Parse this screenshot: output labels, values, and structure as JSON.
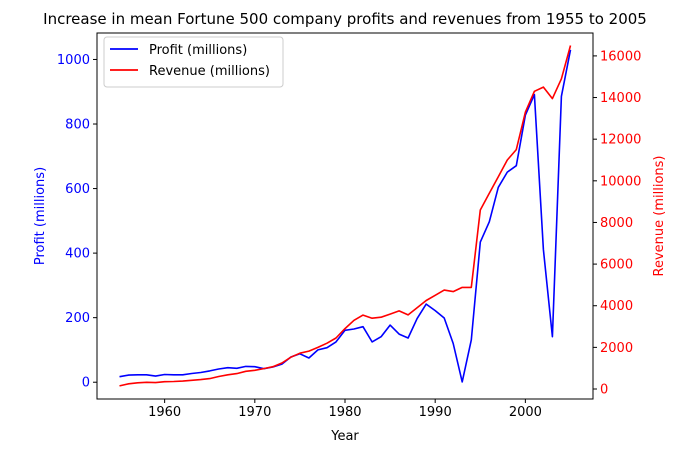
{
  "chart_data": {
    "type": "line",
    "title": "Increase in mean Fortune 500 company profits and revenues from 1955 to 2005",
    "xlabel": "Year",
    "ylabel_left": "Profit (millions)",
    "ylabel_right": "Revenue (millions)",
    "xlim": [
      1952.5,
      2007.5
    ],
    "ylim_left": [
      -52,
      1082
    ],
    "ylim_right": [
      -480,
      17100
    ],
    "x_ticks": [
      1960,
      1970,
      1980,
      1990,
      2000
    ],
    "y_left_ticks": [
      0,
      200,
      400,
      600,
      800,
      1000
    ],
    "y_right_ticks": [
      0,
      2000,
      4000,
      6000,
      8000,
      10000,
      12000,
      14000,
      16000
    ],
    "legend_position": "top-left",
    "grid": false,
    "colors": {
      "profit": "#0000ff",
      "revenue": "#ff0000",
      "axis": "#000000"
    },
    "x": [
      1955,
      1956,
      1957,
      1958,
      1959,
      1960,
      1961,
      1962,
      1963,
      1964,
      1965,
      1966,
      1967,
      1968,
      1969,
      1970,
      1971,
      1972,
      1973,
      1974,
      1975,
      1976,
      1977,
      1978,
      1979,
      1980,
      1981,
      1982,
      1983,
      1984,
      1985,
      1986,
      1987,
      1988,
      1989,
      1990,
      1991,
      1992,
      1993,
      1994,
      1995,
      1996,
      1997,
      1998,
      1999,
      2000,
      2001,
      2002,
      2003,
      2004,
      2005
    ],
    "series": [
      {
        "name": "Profit (millions)",
        "axis": "left",
        "color": "#0000ff",
        "values": [
          17,
          22,
          23,
          23,
          19,
          24,
          23,
          23,
          27,
          30,
          35,
          41,
          45,
          43,
          49,
          48,
          42,
          47,
          56,
          78,
          88,
          75,
          100,
          107,
          125,
          161,
          165,
          172,
          125,
          141,
          177,
          149,
          137,
          197,
          242,
          222,
          199,
          120,
          1,
          131,
          434,
          497,
          604,
          651,
          671,
          828,
          891,
          411,
          141,
          886,
          1030
        ]
      },
      {
        "name": "Revenue (millions)",
        "axis": "right",
        "color": "#ff0000",
        "values": [
          150,
          250,
          300,
          320,
          310,
          350,
          360,
          380,
          420,
          450,
          500,
          600,
          680,
          740,
          850,
          900,
          980,
          1070,
          1250,
          1530,
          1720,
          1820,
          2000,
          2200,
          2450,
          2900,
          3300,
          3550,
          3400,
          3450,
          3600,
          3750,
          3560,
          3900,
          4250,
          4500,
          4750,
          4680,
          4880,
          4880,
          8600,
          9400,
          10200,
          11000,
          11500,
          13300,
          14300,
          14500,
          13950,
          14900,
          16500
        ]
      }
    ]
  }
}
